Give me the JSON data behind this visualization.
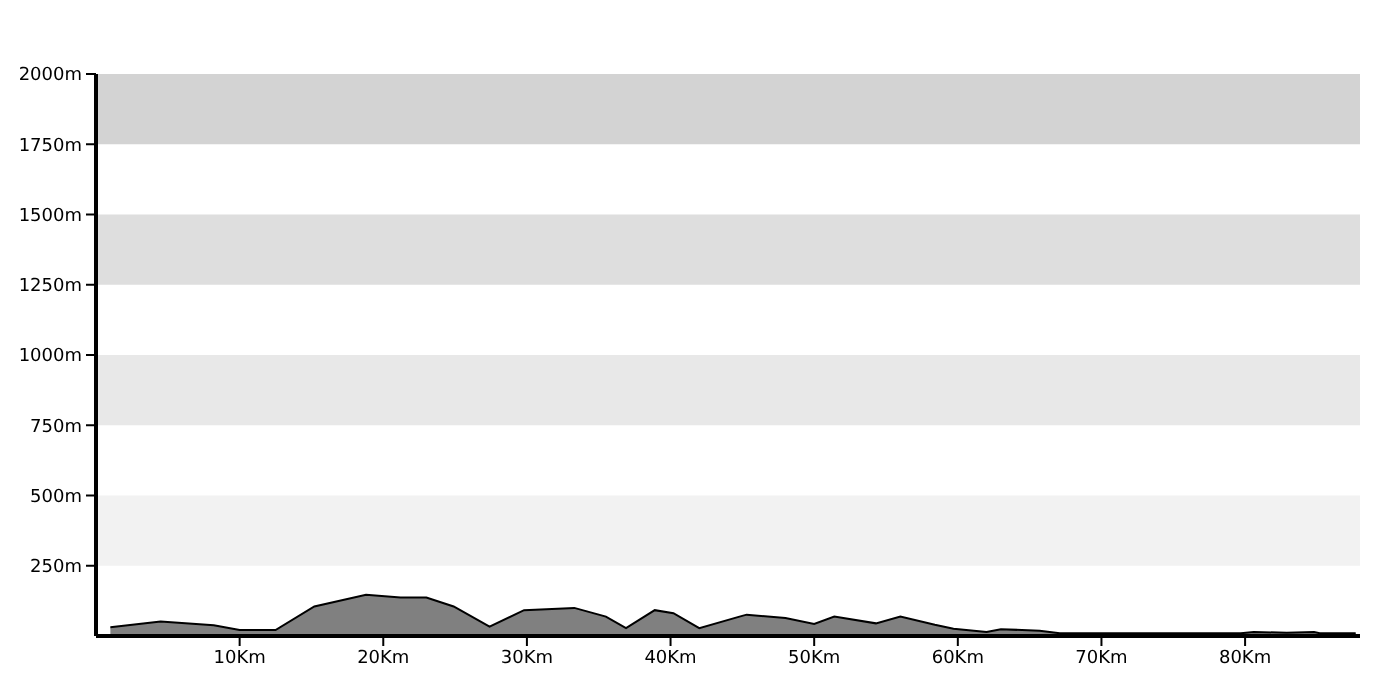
{
  "chart_data": {
    "type": "area",
    "x": [
      1.0,
      4.5,
      8.2,
      10,
      12.5,
      15.2,
      18.8,
      21.2,
      23,
      24.9,
      27.4,
      29.8,
      33.3,
      35.5,
      36.9,
      38.9,
      40.2,
      42,
      44.8,
      45.3,
      48,
      50,
      51.4,
      54.3,
      56,
      58.4,
      59.7,
      62,
      63,
      65.7,
      67.1,
      79.7,
      80.6,
      82.9,
      84.8,
      85.2,
      87.7
    ],
    "series": [
      {
        "color": "#808080",
        "values": [
          31,
          52,
          38,
          21,
          21,
          105,
          147,
          137,
          137,
          105,
          33,
          92,
          100,
          69,
          28,
          92,
          81,
          28,
          69,
          76,
          64,
          43,
          69,
          45,
          69,
          40,
          26,
          14,
          24,
          19,
          10,
          10,
          14,
          12,
          14,
          10,
          10
        ]
      }
    ],
    "xlim": [
      0,
      88
    ],
    "xticks": [
      {
        "value": 10,
        "label": "10Km"
      },
      {
        "value": 20,
        "label": "20Km"
      },
      {
        "value": 30,
        "label": "30Km"
      },
      {
        "value": 40,
        "label": "40Km"
      },
      {
        "value": 50,
        "label": "50Km"
      },
      {
        "value": 60,
        "label": "60Km"
      },
      {
        "value": 70,
        "label": "70Km"
      },
      {
        "value": 80,
        "label": "80Km"
      }
    ],
    "ylim": [
      0,
      2000
    ],
    "yticks": [
      {
        "value": 250,
        "label": "250m"
      },
      {
        "value": 500,
        "label": "500m"
      },
      {
        "value": 750,
        "label": "750m"
      },
      {
        "value": 1000,
        "label": "1000m"
      },
      {
        "value": 1250,
        "label": "1250m"
      },
      {
        "value": 1500,
        "label": "1500m"
      },
      {
        "value": 1750,
        "label": "1750m"
      },
      {
        "value": 2000,
        "label": "2000m"
      }
    ],
    "bands": [
      {
        "axis": "y",
        "from": 250,
        "to": 500,
        "color": "#f2f2f2"
      },
      {
        "axis": "y",
        "from": 750,
        "to": 1000,
        "color": "#e8e8e8"
      },
      {
        "axis": "y",
        "from": 1250,
        "to": 1500,
        "color": "#dedede"
      },
      {
        "axis": "y",
        "from": 1750,
        "to": 2000,
        "color": "#d3d3d3"
      }
    ],
    "grid": false,
    "legend": false
  }
}
